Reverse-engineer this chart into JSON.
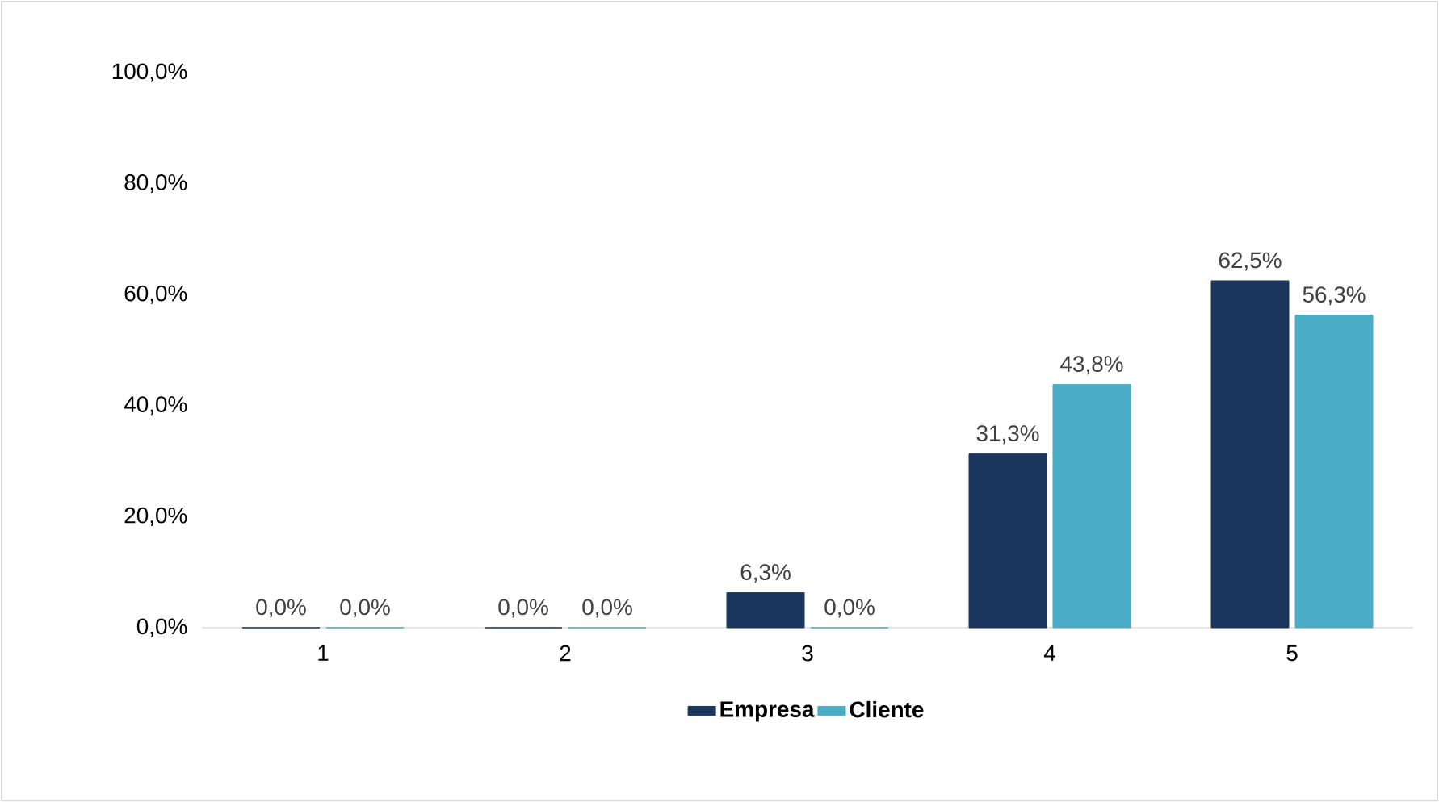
{
  "chart_data": {
    "type": "bar",
    "categories": [
      "1",
      "2",
      "3",
      "4",
      "5"
    ],
    "series": [
      {
        "name": "Empresa",
        "color": "#1b365d",
        "values": [
          0.0,
          0.0,
          6.3,
          31.3,
          62.5
        ],
        "value_labels": [
          "0,0%",
          "0,0%",
          "6,3%",
          "31,3%",
          "62,5%"
        ]
      },
      {
        "name": "Cliente",
        "color": "#4bacc6",
        "values": [
          0.0,
          0.0,
          0.0,
          43.8,
          56.3
        ],
        "value_labels": [
          "0,0%",
          "0,0%",
          "0,0%",
          "43,8%",
          "56,3%"
        ]
      }
    ],
    "ylim": [
      0,
      100
    ],
    "yticks": [
      {
        "value": 0,
        "label": "0,0%"
      },
      {
        "value": 20,
        "label": "20,0%"
      },
      {
        "value": 40,
        "label": "40,0%"
      },
      {
        "value": 60,
        "label": "60,0%"
      },
      {
        "value": 80,
        "label": "80,0%"
      },
      {
        "value": 100,
        "label": "100,0%"
      }
    ],
    "legend": "bottom"
  }
}
